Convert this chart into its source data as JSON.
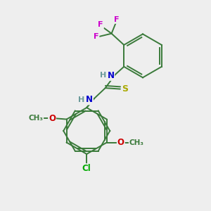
{
  "background_color": "#eeeeee",
  "atom_colors": {
    "C": "#3a7a3a",
    "N": "#0000cc",
    "H": "#6a9a9a",
    "S": "#aaaa00",
    "O": "#cc0000",
    "F": "#cc00cc",
    "Cl": "#00aa00"
  },
  "bond_color": "#3a7a3a",
  "figsize": [
    3.0,
    3.0
  ],
  "dpi": 100,
  "xlim": [
    0,
    10
  ],
  "ylim": [
    0,
    10
  ]
}
